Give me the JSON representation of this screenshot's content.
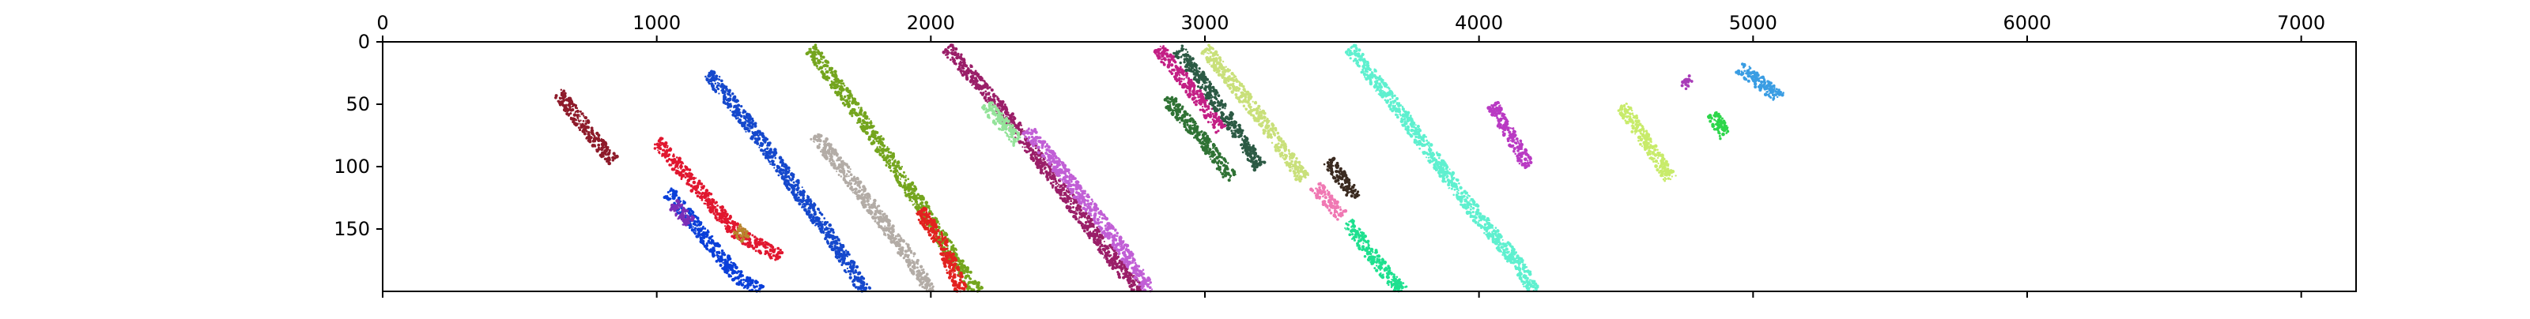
{
  "chart_data": {
    "type": "scatter",
    "title": "",
    "xlabel": "",
    "ylabel": "",
    "xlim": [
      0,
      7200
    ],
    "ylim": [
      200,
      0
    ],
    "x_axis_position": "top",
    "y_axis_inverted": true,
    "grid": false,
    "legend": "none",
    "x_ticks": [
      0,
      1000,
      2000,
      3000,
      4000,
      5000,
      6000,
      7000
    ],
    "y_ticks": [
      0,
      50,
      100,
      150
    ],
    "series": [
      {
        "color": "#e1172f",
        "points": [
          [
            1000,
            80
          ],
          [
            1300,
            155
          ],
          [
            1450,
            172
          ]
        ]
      },
      {
        "color": "#b8862d",
        "points": [
          [
            1290,
            150
          ],
          [
            1330,
            158
          ]
        ]
      },
      {
        "color": "#0a3fd9",
        "points": [
          [
            1040,
            120
          ],
          [
            1160,
            152
          ],
          [
            1300,
            190
          ],
          [
            1380,
            200
          ]
        ]
      },
      {
        "color": "#7b2eb7",
        "points": [
          [
            1060,
            130
          ],
          [
            1120,
            145
          ]
        ]
      },
      {
        "color": "#8e1b2a",
        "points": [
          [
            640,
            40
          ],
          [
            780,
            80
          ],
          [
            840,
            95
          ]
        ]
      },
      {
        "color": "#1548cc",
        "points": [
          [
            1190,
            25
          ],
          [
            1400,
            85
          ],
          [
            1640,
            158
          ],
          [
            1760,
            200
          ]
        ]
      },
      {
        "color": "#74a51e",
        "points": [
          [
            1560,
            5
          ],
          [
            1760,
            65
          ],
          [
            1960,
            130
          ],
          [
            2110,
            182
          ],
          [
            2170,
            200
          ]
        ]
      },
      {
        "color": "#b3aca6",
        "points": [
          [
            1580,
            75
          ],
          [
            1760,
            125
          ],
          [
            1930,
            175
          ],
          [
            2000,
            200
          ]
        ]
      },
      {
        "color": "#e2221f",
        "points": [
          [
            1960,
            135
          ],
          [
            2050,
            165
          ],
          [
            2110,
            200
          ]
        ]
      },
      {
        "color": "#9a1e68",
        "points": [
          [
            2060,
            5
          ],
          [
            2280,
            60
          ],
          [
            2500,
            125
          ],
          [
            2700,
            185
          ],
          [
            2760,
            200
          ]
        ]
      },
      {
        "color": "#c15fd6",
        "points": [
          [
            2350,
            70
          ],
          [
            2500,
            110
          ],
          [
            2680,
            160
          ],
          [
            2800,
            200
          ]
        ]
      },
      {
        "color": "#94e39a",
        "points": [
          [
            2200,
            50
          ],
          [
            2320,
            80
          ]
        ]
      },
      {
        "color": "#2f7234",
        "points": [
          [
            2860,
            45
          ],
          [
            3000,
            80
          ],
          [
            3100,
            110
          ]
        ]
      },
      {
        "color": "#c31f85",
        "points": [
          [
            2830,
            5
          ],
          [
            2940,
            35
          ],
          [
            3060,
            70
          ]
        ]
      },
      {
        "color": "#2c5a44",
        "points": [
          [
            2900,
            5
          ],
          [
            3050,
            50
          ],
          [
            3200,
            100
          ]
        ]
      },
      {
        "color": "#c9e07a",
        "points": [
          [
            3000,
            5
          ],
          [
            3200,
            60
          ],
          [
            3360,
            110
          ]
        ]
      },
      {
        "color": "#f078b3",
        "points": [
          [
            3400,
            115
          ],
          [
            3500,
            140
          ]
        ]
      },
      {
        "color": "#3b2b20",
        "points": [
          [
            3450,
            95
          ],
          [
            3550,
            125
          ]
        ]
      },
      {
        "color": "#1ee08f",
        "points": [
          [
            3520,
            145
          ],
          [
            3640,
            180
          ],
          [
            3720,
            200
          ]
        ]
      },
      {
        "color": "#5ff0cf",
        "points": [
          [
            3530,
            5
          ],
          [
            3760,
            70
          ],
          [
            3960,
            130
          ],
          [
            4150,
            180
          ],
          [
            4200,
            200
          ]
        ]
      },
      {
        "color": "#b93ac3",
        "points": [
          [
            4050,
            50
          ],
          [
            4180,
            100
          ]
        ]
      },
      {
        "color": "#c8eb6a",
        "points": [
          [
            4520,
            50
          ],
          [
            4700,
            110
          ]
        ]
      },
      {
        "color": "#3a9de3",
        "points": [
          [
            4950,
            20
          ],
          [
            5100,
            45
          ]
        ]
      },
      {
        "color": "#2dd64a",
        "points": [
          [
            4850,
            58
          ],
          [
            4900,
            75
          ]
        ]
      },
      {
        "color": "#a83cb8",
        "points": [
          [
            4750,
            30
          ],
          [
            4770,
            35
          ]
        ]
      }
    ]
  }
}
